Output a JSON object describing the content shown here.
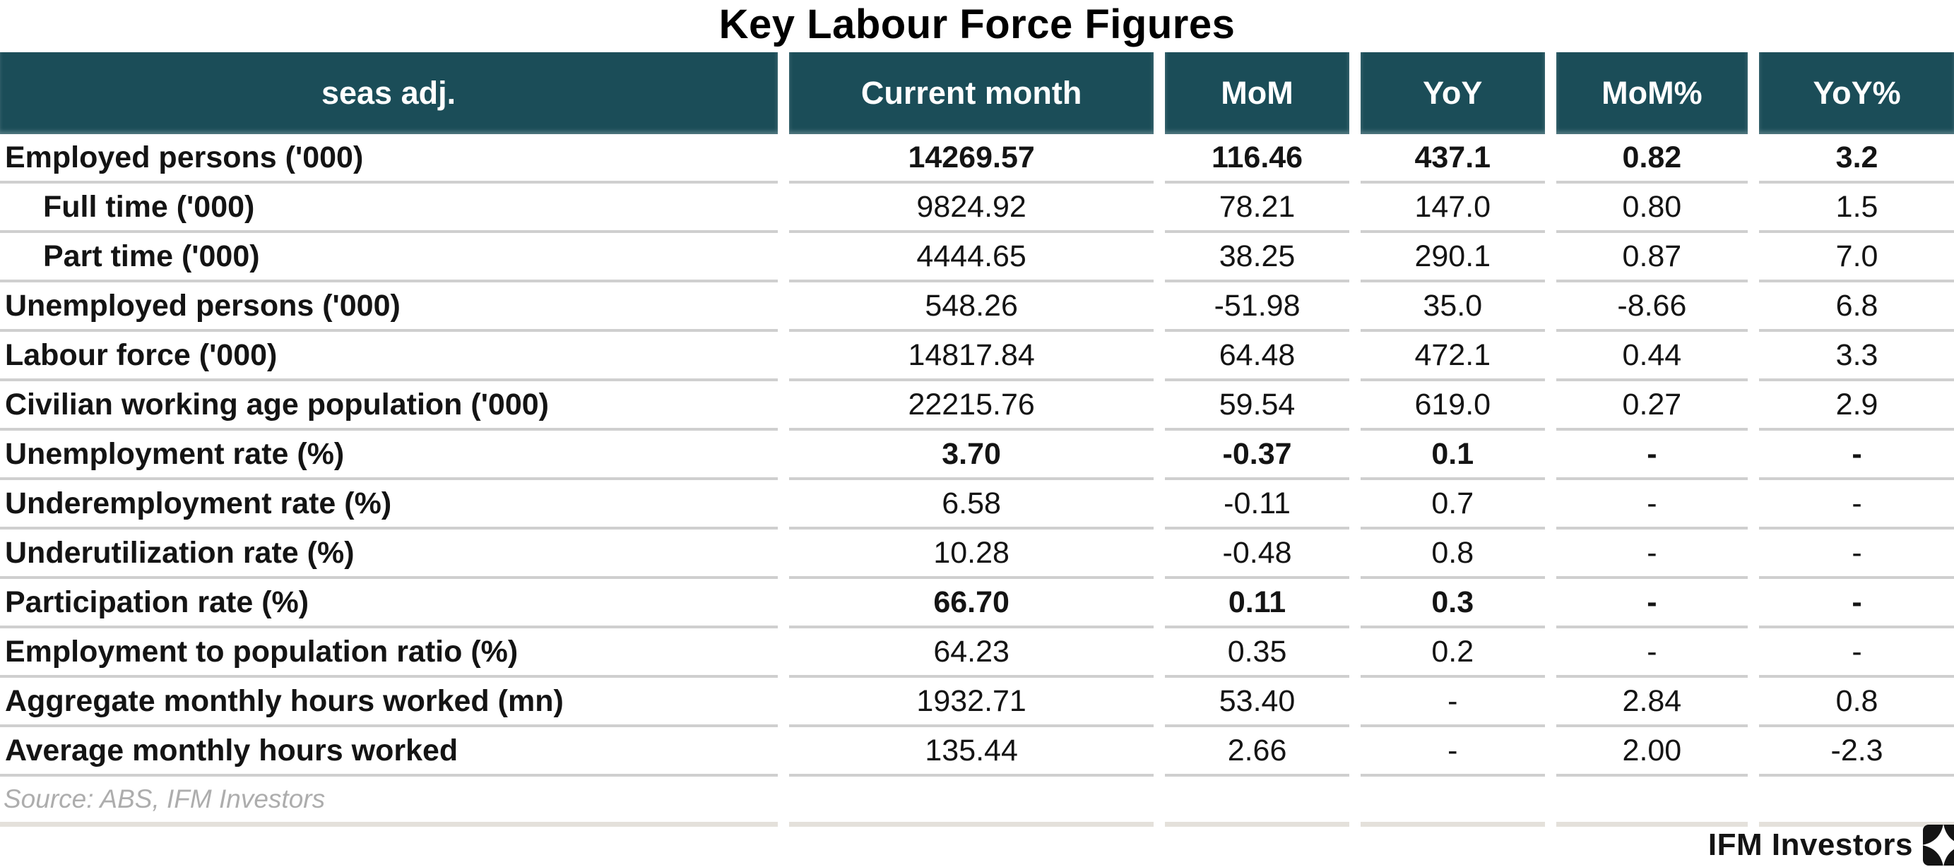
{
  "chart_data": {
    "type": "table",
    "title": "Key Labour Force Figures",
    "columns": [
      "seas adj.",
      "Current month",
      "MoM",
      "YoY",
      "MoM%",
      "YoY%"
    ],
    "rows": [
      {
        "label": "Employed persons ('000)",
        "indent": false,
        "bold_values": true,
        "values": [
          "14269.57",
          "116.46",
          "437.1",
          "0.82",
          "3.2"
        ]
      },
      {
        "label": "Full time ('000)",
        "indent": true,
        "bold_values": false,
        "values": [
          "9824.92",
          "78.21",
          "147.0",
          "0.80",
          "1.5"
        ]
      },
      {
        "label": "Part time ('000)",
        "indent": true,
        "bold_values": false,
        "values": [
          "4444.65",
          "38.25",
          "290.1",
          "0.87",
          "7.0"
        ]
      },
      {
        "label": "Unemployed persons ('000)",
        "indent": false,
        "bold_values": false,
        "values": [
          "548.26",
          "-51.98",
          "35.0",
          "-8.66",
          "6.8"
        ]
      },
      {
        "label": "Labour force ('000)",
        "indent": false,
        "bold_values": false,
        "values": [
          "14817.84",
          "64.48",
          "472.1",
          "0.44",
          "3.3"
        ]
      },
      {
        "label": "Civilian working age population ('000)",
        "indent": false,
        "bold_values": false,
        "values": [
          "22215.76",
          "59.54",
          "619.0",
          "0.27",
          "2.9"
        ]
      },
      {
        "label": "Unemployment rate (%)",
        "indent": false,
        "bold_values": true,
        "values": [
          "3.70",
          "-0.37",
          "0.1",
          "-",
          "-"
        ]
      },
      {
        "label": "Underemployment rate (%)",
        "indent": false,
        "bold_values": false,
        "values": [
          "6.58",
          "-0.11",
          "0.7",
          "-",
          "-"
        ]
      },
      {
        "label": "Underutilization rate (%)",
        "indent": false,
        "bold_values": false,
        "values": [
          "10.28",
          "-0.48",
          "0.8",
          "-",
          "-"
        ]
      },
      {
        "label": "Participation rate (%)",
        "indent": false,
        "bold_values": true,
        "values": [
          "66.70",
          "0.11",
          "0.3",
          "-",
          "-"
        ]
      },
      {
        "label": "Employment to population ratio (%)",
        "indent": false,
        "bold_values": false,
        "values": [
          "64.23",
          "0.35",
          "0.2",
          "-",
          "-"
        ]
      },
      {
        "label": "Aggregate monthly hours worked (mn)",
        "indent": false,
        "bold_values": false,
        "values": [
          "1932.71",
          "53.40",
          "-",
          "2.84",
          "0.8"
        ]
      },
      {
        "label": "Average monthly hours worked",
        "indent": false,
        "bold_values": false,
        "values": [
          "135.44",
          "2.66",
          "-",
          "2.00",
          "-2.3"
        ]
      }
    ],
    "source": "Source: ABS, IFM Investors",
    "layout": {
      "grid": "horizontal-separators-with-column-gaps",
      "legend_position": "none"
    }
  },
  "colors": {
    "header_bg": "#1b4d58",
    "header_text": "#ffffff",
    "row_separator": "#cfcfcf",
    "bottom_band": "#e4e1db",
    "source_text": "#adadad",
    "body_text": "#141414"
  },
  "footer": {
    "brand": "IFM Investors",
    "logo_icon": "ifm-pinwheel-logo"
  }
}
